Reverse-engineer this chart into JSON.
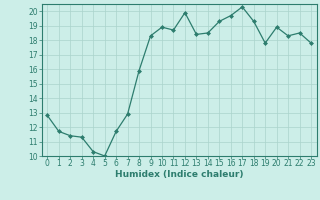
{
  "x": [
    0,
    1,
    2,
    3,
    4,
    5,
    6,
    7,
    8,
    9,
    10,
    11,
    12,
    13,
    14,
    15,
    16,
    17,
    18,
    19,
    20,
    21,
    22,
    23
  ],
  "y": [
    12.8,
    11.7,
    11.4,
    11.3,
    10.3,
    10.0,
    11.7,
    12.9,
    15.9,
    18.3,
    18.9,
    18.7,
    19.9,
    18.4,
    18.5,
    19.3,
    19.7,
    20.3,
    19.3,
    17.8,
    18.9,
    18.3,
    18.5,
    17.8
  ],
  "title": "",
  "xlabel": "Humidex (Indice chaleur)",
  "ylabel": "",
  "xlim": [
    -0.5,
    23.5
  ],
  "ylim": [
    10,
    20.5
  ],
  "yticks": [
    10,
    11,
    12,
    13,
    14,
    15,
    16,
    17,
    18,
    19,
    20
  ],
  "xticks": [
    0,
    1,
    2,
    3,
    4,
    5,
    6,
    7,
    8,
    9,
    10,
    11,
    12,
    13,
    14,
    15,
    16,
    17,
    18,
    19,
    20,
    21,
    22,
    23
  ],
  "line_color": "#2d7d6e",
  "marker": "D",
  "marker_size": 2.0,
  "bg_color": "#cceee8",
  "grid_color": "#aad4cc",
  "axis_color": "#2d7d6e",
  "tick_fontsize": 5.5,
  "xlabel_fontsize": 6.5
}
